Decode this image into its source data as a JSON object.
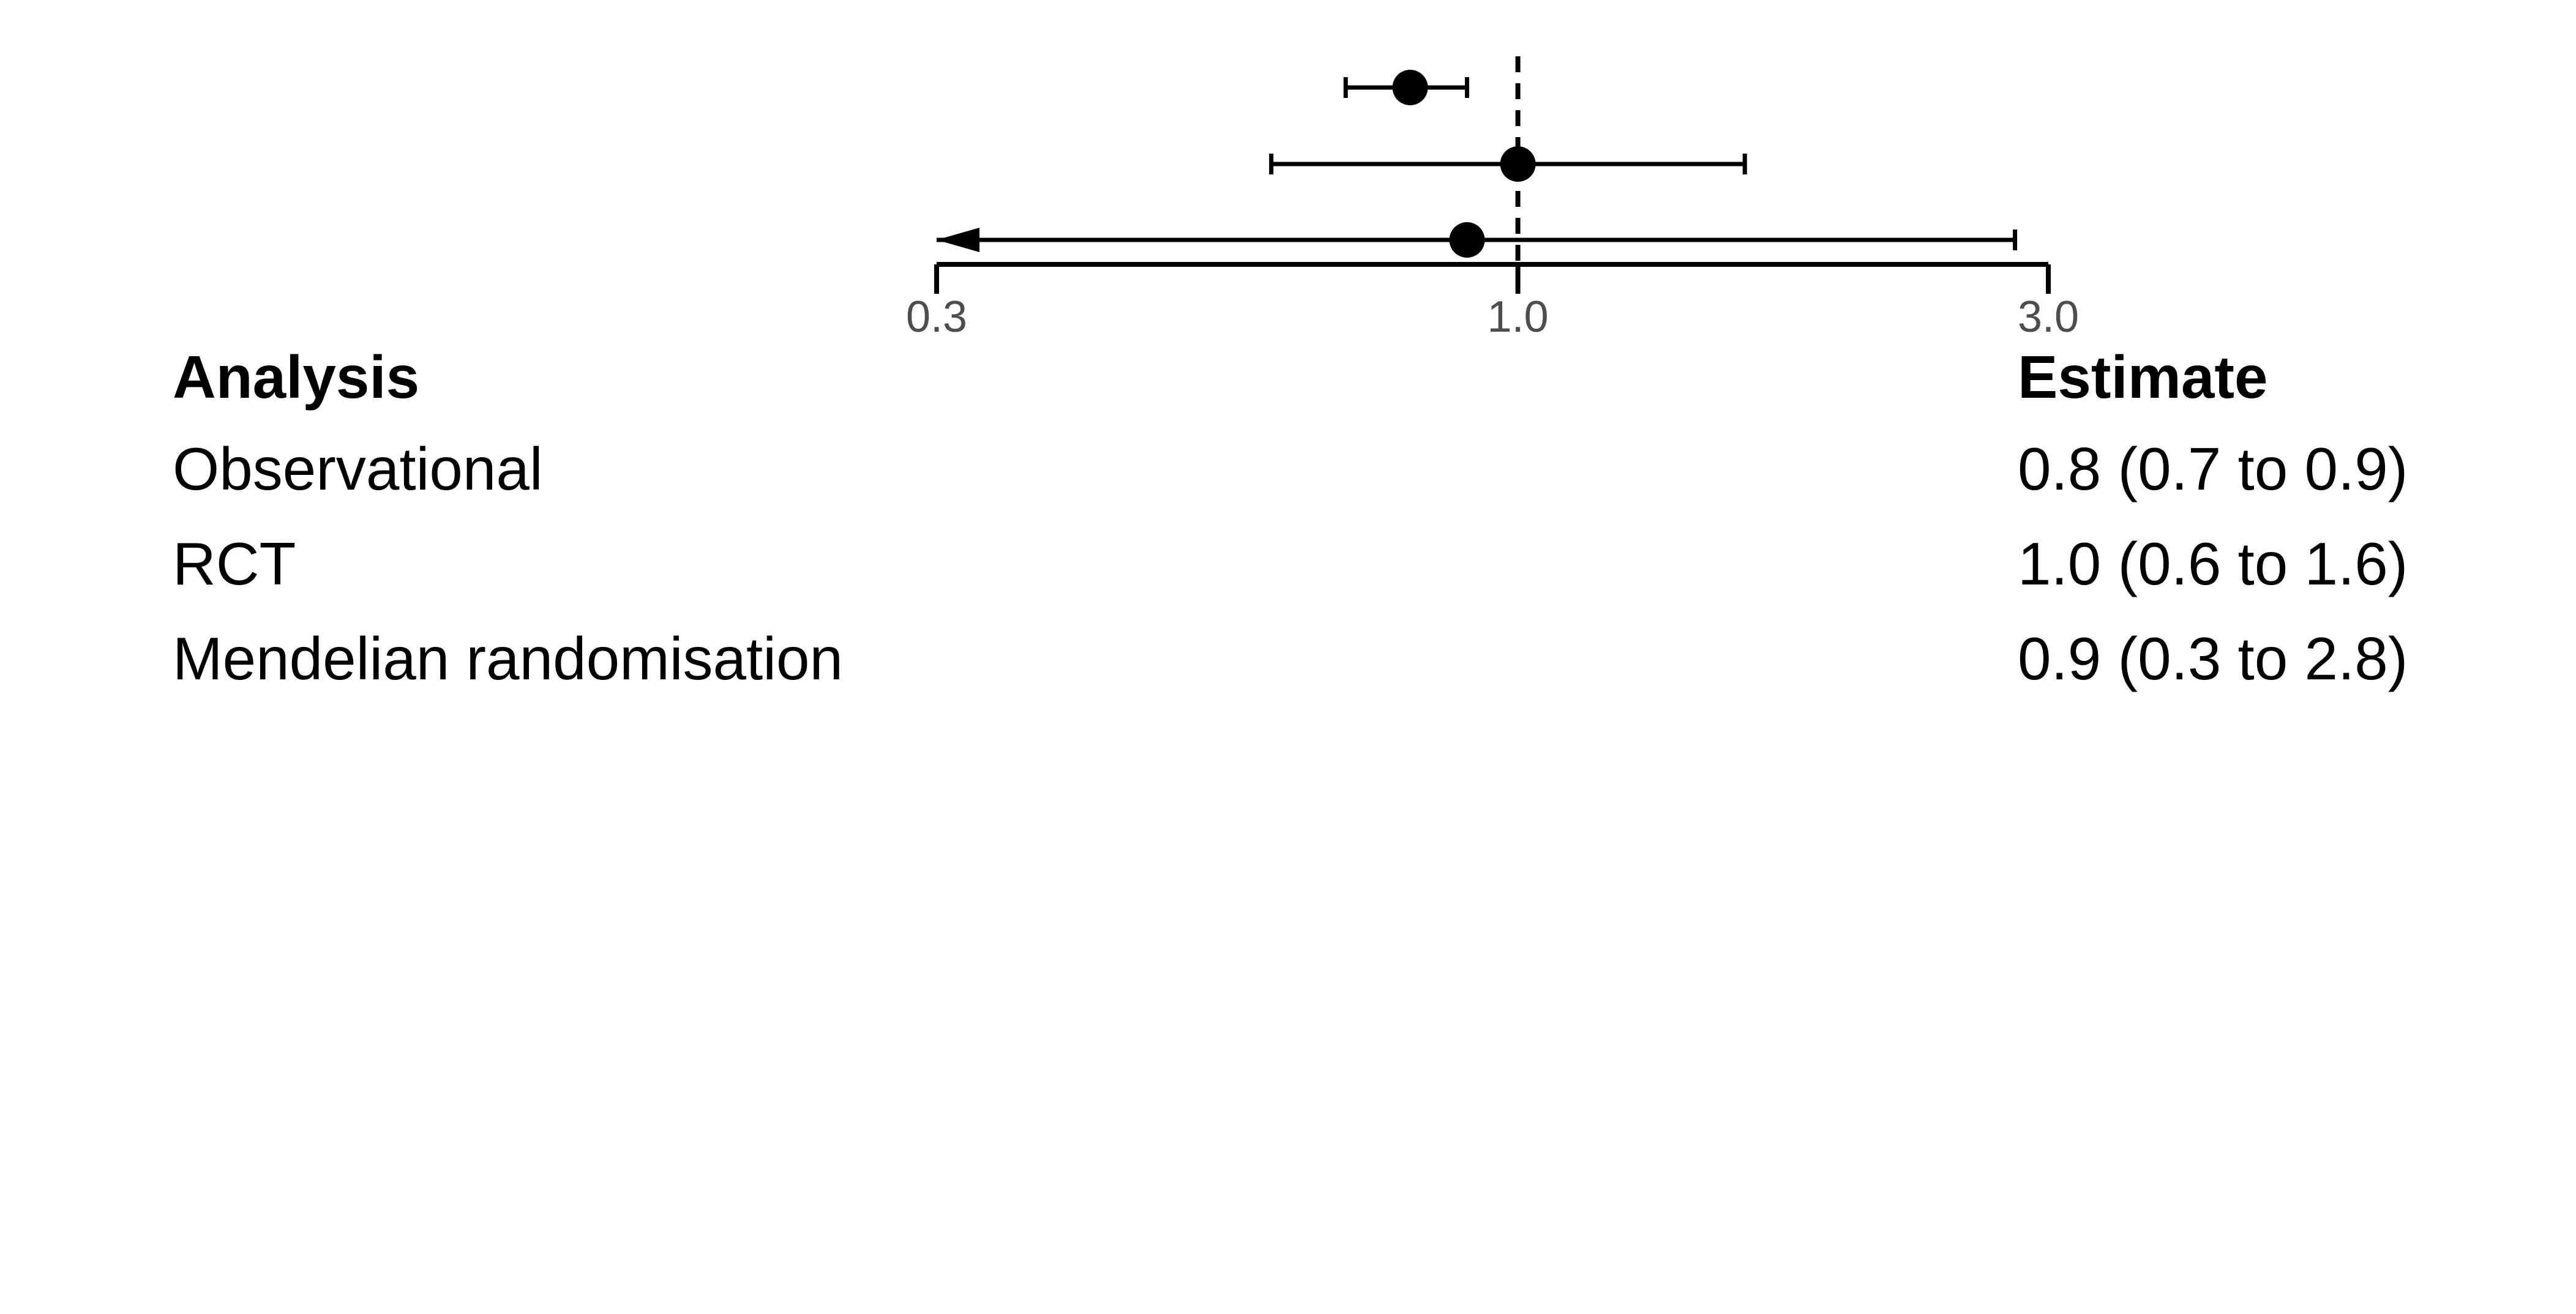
{
  "chart_data": {
    "type": "forest",
    "x_scale": "log",
    "xlim": [
      0.3,
      3.0
    ],
    "null_line": 1.0,
    "x_ticks": [
      "0.3",
      "1.0",
      "3.0"
    ],
    "columns": {
      "analysis_header": "Analysis",
      "estimate_header": "Estimate"
    },
    "rows": [
      {
        "analysis": "Observational",
        "estimate": 0.8,
        "lower": 0.7,
        "upper": 0.9,
        "estimate_text": "0.8 (0.7 to 0.9)"
      },
      {
        "analysis": "RCT",
        "estimate": 1.0,
        "lower": 0.6,
        "upper": 1.6,
        "estimate_text": "1.0 (0.6 to 1.6)"
      },
      {
        "analysis": "Mendelian randomisation",
        "estimate": 0.9,
        "lower": 0.3,
        "upper": 2.8,
        "estimate_text": "0.9 (0.3 to 2.8)",
        "lower_truncated": true
      }
    ],
    "colors": {
      "marks": "#000000",
      "tick_text": "#4d4d4d"
    }
  }
}
